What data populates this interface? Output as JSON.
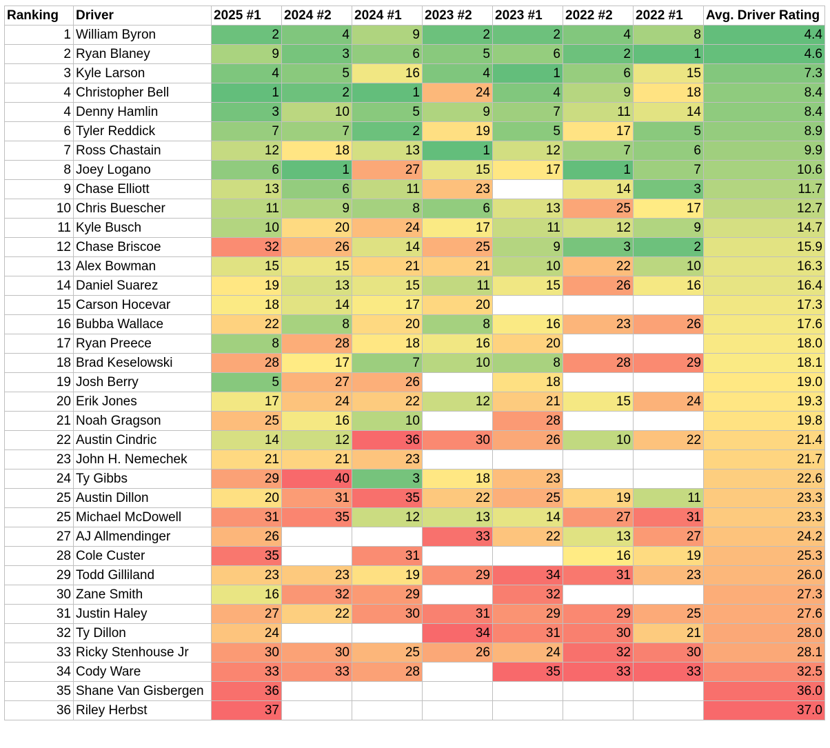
{
  "table": {
    "columns": [
      "Ranking",
      "Driver",
      "2025 #1",
      "2024 #2",
      "2024 #1",
      "2023 #2",
      "2023 #1",
      "2022 #2",
      "2022 #1",
      "Avg. Driver Rating"
    ],
    "rows": [
      [
        "1",
        "William Byron",
        "2",
        "4",
        "9",
        "2",
        "2",
        "4",
        "8",
        "4.4"
      ],
      [
        "2",
        "Ryan Blaney",
        "9",
        "3",
        "6",
        "5",
        "6",
        "2",
        "1",
        "4.6"
      ],
      [
        "3",
        "Kyle Larson",
        "4",
        "5",
        "16",
        "4",
        "1",
        "6",
        "15",
        "7.3"
      ],
      [
        "4",
        "Christopher Bell",
        "1",
        "2",
        "1",
        "24",
        "4",
        "9",
        "18",
        "8.4"
      ],
      [
        "4",
        "Denny Hamlin",
        "3",
        "10",
        "5",
        "9",
        "7",
        "11",
        "14",
        "8.4"
      ],
      [
        "6",
        "Tyler Reddick",
        "7",
        "7",
        "2",
        "19",
        "5",
        "17",
        "5",
        "8.9"
      ],
      [
        "7",
        "Ross Chastain",
        "12",
        "18",
        "13",
        "1",
        "12",
        "7",
        "6",
        "9.9"
      ],
      [
        "8",
        "Joey Logano",
        "6",
        "1",
        "27",
        "15",
        "17",
        "1",
        "7",
        "10.6"
      ],
      [
        "9",
        "Chase Elliott",
        "13",
        "6",
        "11",
        "23",
        "",
        "14",
        "3",
        "11.7"
      ],
      [
        "10",
        "Chris Buescher",
        "11",
        "9",
        "8",
        "6",
        "13",
        "25",
        "17",
        "12.7"
      ],
      [
        "11",
        "Kyle Busch",
        "10",
        "20",
        "24",
        "17",
        "11",
        "12",
        "9",
        "14.7"
      ],
      [
        "12",
        "Chase Briscoe",
        "32",
        "26",
        "14",
        "25",
        "9",
        "3",
        "2",
        "15.9"
      ],
      [
        "13",
        "Alex Bowman",
        "15",
        "15",
        "21",
        "21",
        "10",
        "22",
        "10",
        "16.3"
      ],
      [
        "14",
        "Daniel Suarez",
        "19",
        "13",
        "15",
        "11",
        "15",
        "26",
        "16",
        "16.4"
      ],
      [
        "15",
        "Carson Hocevar",
        "18",
        "14",
        "17",
        "20",
        "",
        "",
        "",
        "17.3"
      ],
      [
        "16",
        "Bubba Wallace",
        "22",
        "8",
        "20",
        "8",
        "16",
        "23",
        "26",
        "17.6"
      ],
      [
        "17",
        "Ryan Preece",
        "8",
        "28",
        "18",
        "16",
        "20",
        "",
        "",
        "18.0"
      ],
      [
        "18",
        "Brad Keselowski",
        "28",
        "17",
        "7",
        "10",
        "8",
        "28",
        "29",
        "18.1"
      ],
      [
        "19",
        "Josh Berry",
        "5",
        "27",
        "26",
        "",
        "18",
        "",
        "",
        "19.0"
      ],
      [
        "20",
        "Erik Jones",
        "17",
        "24",
        "22",
        "12",
        "21",
        "15",
        "24",
        "19.3"
      ],
      [
        "21",
        "Noah Gragson",
        "25",
        "16",
        "10",
        "",
        "28",
        "",
        "",
        "19.8"
      ],
      [
        "22",
        "Austin Cindric",
        "14",
        "12",
        "36",
        "30",
        "26",
        "10",
        "22",
        "21.4"
      ],
      [
        "23",
        "John H. Nemechek",
        "21",
        "21",
        "23",
        "",
        "",
        "",
        "",
        "21.7"
      ],
      [
        "24",
        "Ty Gibbs",
        "29",
        "40",
        "3",
        "18",
        "23",
        "",
        "",
        "22.6"
      ],
      [
        "25",
        "Austin Dillon",
        "20",
        "31",
        "35",
        "22",
        "25",
        "19",
        "11",
        "23.3"
      ],
      [
        "25",
        "Michael McDowell",
        "31",
        "35",
        "12",
        "13",
        "14",
        "27",
        "31",
        "23.3"
      ],
      [
        "27",
        "AJ Allmendinger",
        "26",
        "",
        "",
        "33",
        "22",
        "13",
        "27",
        "24.2"
      ],
      [
        "28",
        "Cole Custer",
        "35",
        "",
        "31",
        "",
        "",
        "16",
        "19",
        "25.3"
      ],
      [
        "29",
        "Todd Gilliland",
        "23",
        "23",
        "19",
        "29",
        "34",
        "31",
        "23",
        "26.0"
      ],
      [
        "30",
        "Zane Smith",
        "16",
        "32",
        "29",
        "",
        "32",
        "",
        "",
        "27.3"
      ],
      [
        "31",
        "Justin Haley",
        "27",
        "22",
        "30",
        "31",
        "29",
        "29",
        "25",
        "27.6"
      ],
      [
        "32",
        "Ty Dillon",
        "24",
        "",
        "",
        "34",
        "31",
        "30",
        "21",
        "28.0"
      ],
      [
        "33",
        "Ricky Stenhouse Jr",
        "30",
        "30",
        "25",
        "26",
        "24",
        "32",
        "30",
        "28.1"
      ],
      [
        "34",
        "Cody Ware",
        "33",
        "33",
        "28",
        "",
        "35",
        "33",
        "33",
        "32.5"
      ],
      [
        "35",
        "Shane Van Gisbergen",
        "36",
        "",
        "",
        "",
        "",
        "",
        "",
        "36.0"
      ],
      [
        "36",
        "Riley Herbst",
        "37",
        "",
        "",
        "",
        "",
        "",
        "",
        "37.0"
      ]
    ]
  },
  "color_scale": {
    "low": "#63be7b",
    "mid": "#ffeb84",
    "high": "#f8696b"
  }
}
